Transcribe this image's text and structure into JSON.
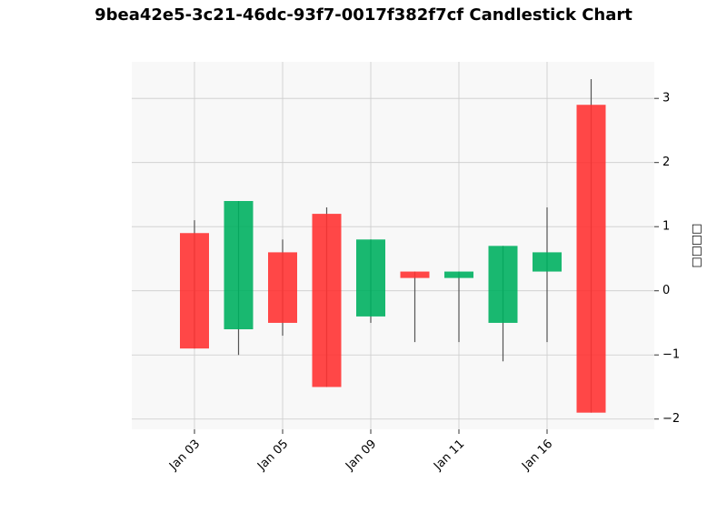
{
  "chart_data": {
    "type": "candlestick",
    "title": "9bea42e5-3c21-46dc-93f7-0017f382f7cf Candlestick Chart",
    "y_label": "□□□□",
    "categories": [
      "Jan 03",
      null,
      "Jan 05",
      null,
      "Jan 09",
      null,
      "Jan 11",
      null,
      "Jan 16",
      null
    ],
    "open": [
      -0.9,
      1.4,
      -0.5,
      -1.5,
      0.8,
      0.2,
      0.3,
      0.7,
      0.6,
      -1.9
    ],
    "high": [
      1.1,
      1.4,
      0.8,
      1.3,
      0.8,
      0.3,
      0.3,
      0.7,
      1.3,
      3.3
    ],
    "low": [
      -0.9,
      -1.0,
      -0.7,
      -1.5,
      -0.5,
      -0.8,
      -0.8,
      -1.1,
      -0.8,
      -1.9
    ],
    "close": [
      0.9,
      -0.6,
      0.6,
      1.2,
      -0.4,
      0.3,
      0.2,
      -0.5,
      0.3,
      2.9
    ],
    "up_color": "#ff3333",
    "down_color": "#00b060",
    "ylim": [
      -2.16,
      3.57
    ],
    "yticks": [
      {
        "value": -2,
        "label": "−2"
      },
      {
        "value": -1,
        "label": "−1"
      },
      0,
      1,
      2,
      3
    ],
    "grid": true,
    "y_axis_side": "right"
  }
}
